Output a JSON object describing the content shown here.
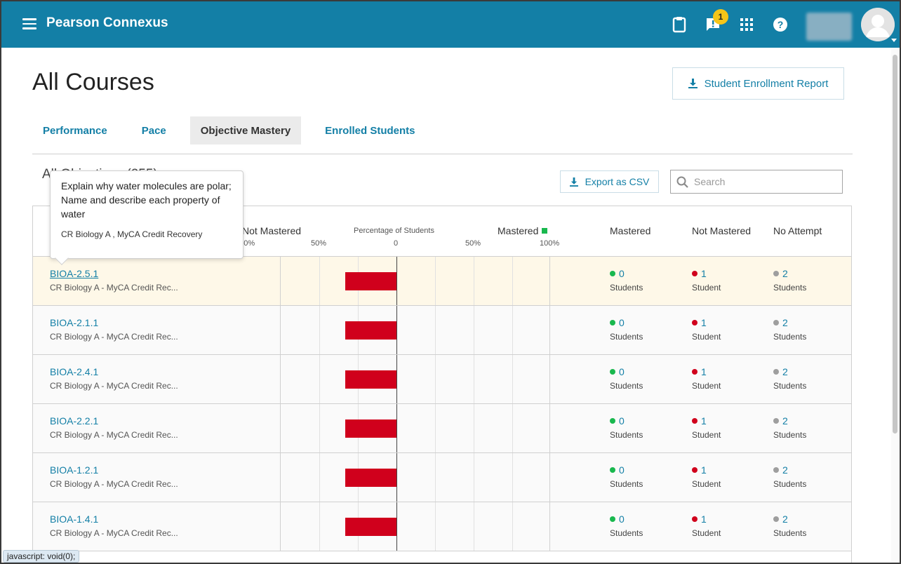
{
  "header": {
    "brand": "Pearson Connexus",
    "notification_count": "1",
    "icons": [
      "menu-icon",
      "clipboard-icon",
      "alert-chat-icon",
      "apps-grid-icon",
      "help-icon"
    ],
    "bar_color": "#137fa6"
  },
  "page": {
    "title": "All Courses",
    "report_button": "Student Enrollment Report"
  },
  "tabs": [
    {
      "label": "Performance",
      "active": false
    },
    {
      "label": "Pace",
      "active": false
    },
    {
      "label": "Objective Mastery",
      "active": true
    },
    {
      "label": "Enrolled Students",
      "active": false
    }
  ],
  "toolbar": {
    "section_title": "All Objectives (255)",
    "export_label": "Export as CSV",
    "search_placeholder": "Search"
  },
  "table_header": {
    "not_mastered": "Not Mastered",
    "percentage": "Percentage of Students",
    "mastered": "Mastered",
    "scale_left": [
      "100%",
      "50%"
    ],
    "scale_zero": "0",
    "scale_right": [
      "50%",
      "100%"
    ],
    "col_mastered": "Mastered",
    "col_not_mastered": "Not Mastered",
    "col_no_attempt": "No Attempt"
  },
  "rows": [
    {
      "id": "BIOA-2.5.1",
      "course": "CR Biology A - MyCA Credit Rec...",
      "mastered": "0",
      "mastered_label": "Students",
      "not_mastered": "1",
      "not_mastered_label": "Student",
      "no_attempt": "2",
      "no_attempt_label": "Students",
      "not_mastered_pct": 33,
      "mastered_pct": 0
    },
    {
      "id": "BIOA-2.1.1",
      "course": "CR Biology A - MyCA Credit Rec...",
      "mastered": "0",
      "mastered_label": "Students",
      "not_mastered": "1",
      "not_mastered_label": "Student",
      "no_attempt": "2",
      "no_attempt_label": "Students",
      "not_mastered_pct": 33,
      "mastered_pct": 0
    },
    {
      "id": "BIOA-2.4.1",
      "course": "CR Biology A - MyCA Credit Rec...",
      "mastered": "0",
      "mastered_label": "Students",
      "not_mastered": "1",
      "not_mastered_label": "Student",
      "no_attempt": "2",
      "no_attempt_label": "Students",
      "not_mastered_pct": 33,
      "mastered_pct": 0
    },
    {
      "id": "BIOA-2.2.1",
      "course": "CR Biology A - MyCA Credit Rec...",
      "mastered": "0",
      "mastered_label": "Students",
      "not_mastered": "1",
      "not_mastered_label": "Student",
      "no_attempt": "2",
      "no_attempt_label": "Students",
      "not_mastered_pct": 33,
      "mastered_pct": 0
    },
    {
      "id": "BIOA-1.2.1",
      "course": "CR Biology A - MyCA Credit Rec...",
      "mastered": "0",
      "mastered_label": "Students",
      "not_mastered": "1",
      "not_mastered_label": "Student",
      "no_attempt": "2",
      "no_attempt_label": "Students",
      "not_mastered_pct": 33,
      "mastered_pct": 0
    },
    {
      "id": "BIOA-1.4.1",
      "course": "CR Biology A - MyCA Credit Rec...",
      "mastered": "0",
      "mastered_label": "Students",
      "not_mastered": "1",
      "not_mastered_label": "Student",
      "no_attempt": "2",
      "no_attempt_label": "Students",
      "not_mastered_pct": 33,
      "mastered_pct": 0
    }
  ],
  "tooltip": {
    "text": "Explain why water molecules are polar; Name and describe each property of water",
    "course": "CR Biology A , MyCA Credit Recovery"
  },
  "status_bar": "javascript: void(0);",
  "colors": {
    "link": "#137fa6",
    "not_mastered": "#d0001c",
    "mastered": "#19b84e",
    "no_attempt": "#9e9e9e",
    "badge": "#f5c518",
    "highlight_row": "#fef8e8"
  }
}
